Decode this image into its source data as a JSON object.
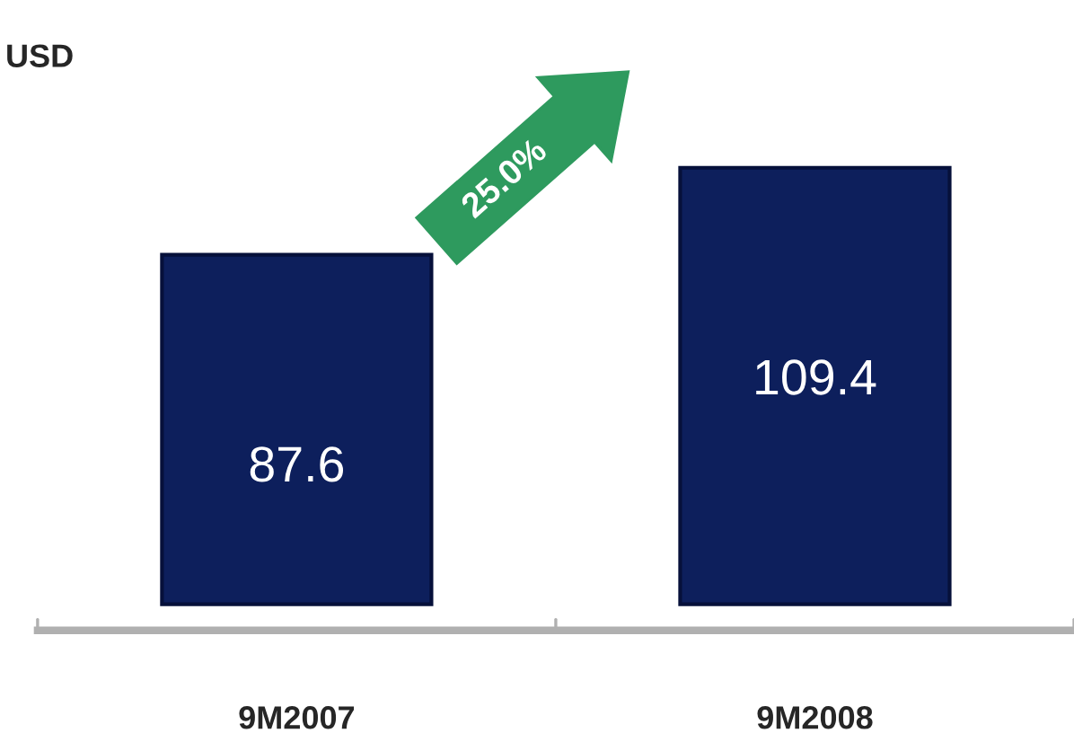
{
  "chart_data": {
    "type": "bar",
    "ylabel": "USD",
    "categories": [
      "9M2007",
      "9M2008"
    ],
    "values": [
      87.6,
      109.4
    ],
    "color": "#0d1f5c",
    "data_labels": true,
    "annotations": [
      "25.0%"
    ],
    "grid": false,
    "legend": false
  }
}
